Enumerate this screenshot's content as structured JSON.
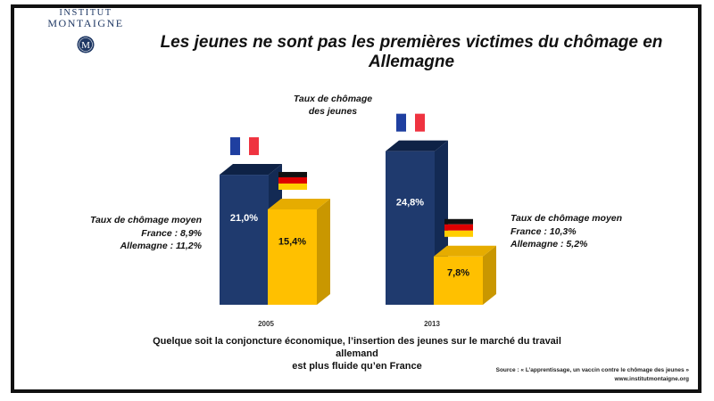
{
  "logo": {
    "line1": "INSTITUT",
    "line2": "MONTAIGNE",
    "seal_letter": "M"
  },
  "title": "Les jeunes ne sont pas les premières victimes du chômage en Allemagne",
  "center_label": {
    "line1": "Taux de chômage",
    "line2": "des jeunes"
  },
  "left_note": {
    "line1": "Taux de chômage moyen",
    "line2": "France : 8,9%",
    "line3": "Allemagne : 11,2%"
  },
  "right_note": {
    "line1": "Taux de chômage moyen",
    "line2": "France : 10,3%",
    "line3": "Allemagne : 5,2%"
  },
  "caption": {
    "line1": "Quelque soit la conjoncture économique, l’insertion des jeunes sur le marché du travail allemand",
    "line2": "est plus fluide qu’en France"
  },
  "source": {
    "line1": "Source : « L’apprentissage, un vaccin contre le chômage des jeunes »",
    "line2": "www.institutmontaigne.org"
  },
  "colors": {
    "france": "#1f3a6e",
    "germany": "#ffc000",
    "frame": "#111111",
    "title": "#111111"
  },
  "flag_icons": [
    "france-flag-icon",
    "germany-flag-icon"
  ],
  "chart_data": {
    "type": "bar",
    "categories": [
      "2005",
      "2013"
    ],
    "series": [
      {
        "country": "France",
        "values": [
          21.0,
          24.8
        ],
        "labels": [
          "21,0%",
          "24,8%"
        ],
        "color": "#1f3a6e"
      },
      {
        "country": "Allemagne",
        "values": [
          15.4,
          7.8
        ],
        "labels": [
          "15,4%",
          "7,8%"
        ],
        "color": "#ffc000"
      }
    ],
    "ylim": [
      0,
      25
    ],
    "grid": false,
    "legend": "none",
    "style": "3d"
  }
}
